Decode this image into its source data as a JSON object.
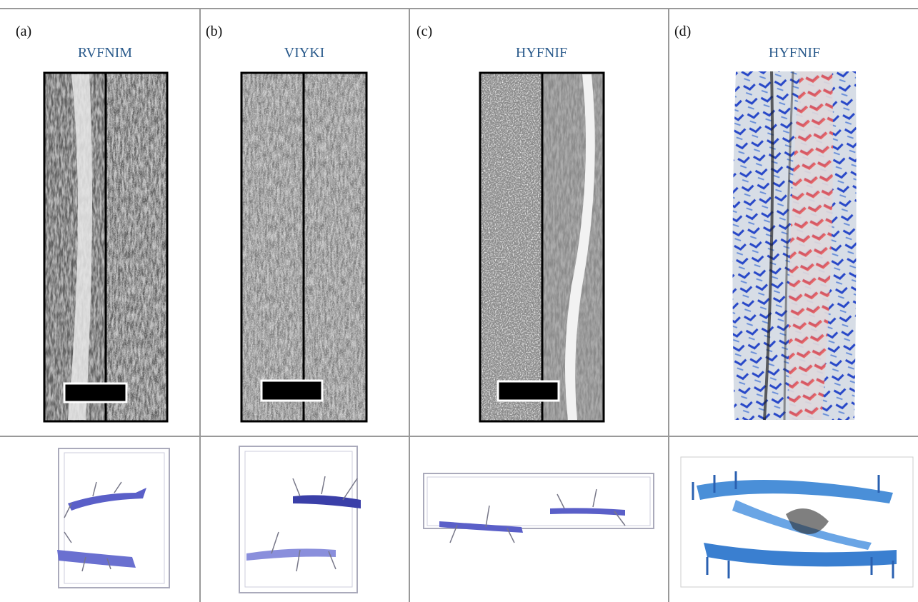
{
  "panels": [
    {
      "label": "(a)",
      "title": "RVFNIM"
    },
    {
      "label": "(b)",
      "title": "VIYKI"
    },
    {
      "label": "(c)",
      "title": "HYFNIF"
    },
    {
      "label": "(d)",
      "title": "HYFNIF"
    }
  ]
}
